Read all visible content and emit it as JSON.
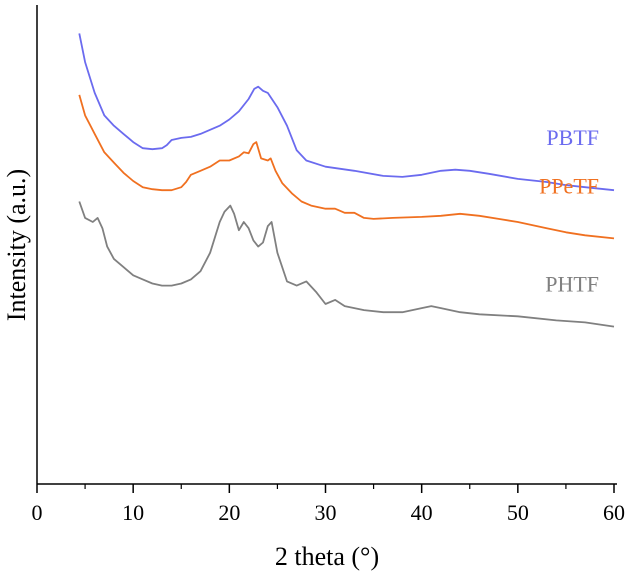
{
  "chart_data": {
    "type": "line",
    "xlabel": "2 theta  (°)",
    "ylabel": "Intensity  (a.u.)",
    "xlim": [
      0,
      60
    ],
    "xticks": [
      0,
      10,
      20,
      30,
      40,
      50,
      60
    ],
    "y_ticks_shown": false,
    "grid": false,
    "legend": "inline labels at right end of each curve",
    "series": [
      {
        "name": "PBTF",
        "color": "#6b6bef",
        "x": [
          4.4,
          5,
          6,
          7,
          8,
          9,
          10,
          11,
          12,
          13,
          13.5,
          14,
          15,
          16,
          17,
          18,
          19,
          20,
          21,
          22,
          22.6,
          23,
          23.5,
          24,
          25,
          26,
          27,
          28,
          30,
          33,
          36,
          38,
          40,
          42,
          43.5,
          45,
          47,
          50,
          53,
          55,
          57,
          60
        ],
        "y": [
          92,
          78,
          63,
          52,
          47,
          43,
          39,
          36,
          35.5,
          36,
          37.5,
          40,
          41,
          41.5,
          43,
          45,
          47,
          50,
          54,
          60,
          65,
          66,
          64,
          63,
          56,
          47,
          35,
          30,
          27,
          25,
          22.5,
          22,
          23,
          25,
          25.5,
          25,
          23.5,
          21,
          19.5,
          18,
          17,
          15.5
        ]
      },
      {
        "name": "PPeTF",
        "color": "#f07020",
        "x": [
          4.4,
          5,
          6,
          7,
          8,
          9,
          10,
          11,
          12,
          13,
          14,
          15,
          15.5,
          16,
          17,
          18,
          19,
          20,
          21,
          21.5,
          22,
          22.5,
          22.8,
          23.3,
          24,
          24.3,
          24.8,
          25.5,
          26.5,
          27.5,
          28.5,
          30,
          31,
          32,
          33,
          34,
          35,
          37,
          40,
          42,
          44,
          46,
          48,
          50,
          53,
          55,
          57,
          60
        ],
        "y": [
          62,
          52,
          43,
          34,
          29,
          24,
          20,
          17,
          16,
          15.5,
          15.5,
          17,
          19.5,
          23,
          25,
          27,
          30,
          30,
          32,
          34,
          33.5,
          38,
          39,
          31,
          30,
          31,
          25,
          19,
          14,
          10,
          8,
          6.5,
          6.5,
          4.5,
          4.5,
          2,
          1.5,
          2,
          2.5,
          3,
          4,
          3,
          1.5,
          0,
          -3,
          -5,
          -6.5,
          -8
        ]
      },
      {
        "name": "PHTF",
        "color": "#808080",
        "x": [
          4.4,
          5,
          5.8,
          6.3,
          6.8,
          7.3,
          8,
          9,
          10,
          11,
          12,
          13,
          14,
          15,
          16,
          17,
          18,
          19,
          19.5,
          20.1,
          20.5,
          21,
          21.5,
          22,
          22.5,
          23,
          23.5,
          24,
          24.4,
          25,
          26,
          27,
          28,
          29,
          30,
          31,
          32,
          34,
          36,
          38,
          40,
          41,
          42,
          44,
          46,
          50,
          54,
          57,
          60
        ],
        "y": [
          10,
          2,
          0,
          2,
          -3,
          -12,
          -18,
          -22,
          -26,
          -28,
          -30,
          -31,
          -31,
          -30,
          -28,
          -24,
          -15,
          0,
          5,
          8,
          4,
          -4,
          0,
          -3,
          -9,
          -12,
          -10,
          -2,
          0,
          -15,
          -29,
          -31,
          -29,
          -34,
          -40,
          -38,
          -41,
          -43,
          -44,
          -44,
          -42,
          -41,
          -42,
          -44,
          -45,
          -46,
          -48,
          -49,
          -51
        ]
      }
    ]
  }
}
